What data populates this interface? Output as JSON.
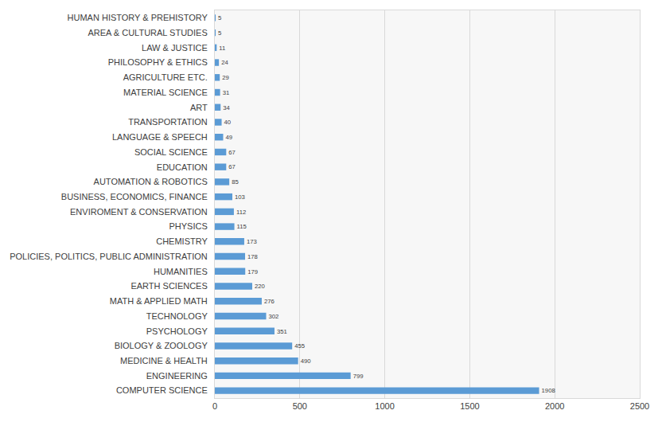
{
  "chart_data": {
    "type": "bar",
    "orientation": "horizontal",
    "categories": [
      "HUMAN HISTORY & PREHISTORY",
      "AREA & CULTURAL STUDIES",
      "LAW & JUSTICE",
      "PHILOSOPHY & ETHICS",
      "AGRICULTURE ETC.",
      "MATERIAL SCIENCE",
      "ART",
      "TRANSPORTATION",
      "LANGUAGE & SPEECH",
      "SOCIAL SCIENCE",
      "EDUCATION",
      "AUTOMATION & ROBOTICS",
      "BUSINESS, ECONOMICS, FINANCE",
      "ENVIROMENT & CONSERVATION",
      "PHYSICS",
      "CHEMISTRY",
      "POLICIES, POLITICS, PUBLIC ADMINISTRATION",
      "HUMANITIES",
      "EARTH SCIENCES",
      "MATH & APPLIED MATH",
      "TECHNOLOGY",
      "PSYCHOLOGY",
      "BIOLOGY & ZOOLOGY",
      "MEDICINE & HEALTH",
      "ENGINEERING",
      "COMPUTER SCIENCE"
    ],
    "values": [
      5,
      5,
      11,
      24,
      29,
      31,
      34,
      40,
      49,
      67,
      67,
      85,
      103,
      112,
      115,
      173,
      178,
      179,
      220,
      276,
      302,
      351,
      455,
      490,
      799,
      1908
    ],
    "color": "#5b9bd5",
    "xlim": [
      0,
      2500
    ],
    "xticks": [
      0,
      500,
      1000,
      1500,
      2000,
      2500
    ],
    "grid": true,
    "data_labels": true
  }
}
